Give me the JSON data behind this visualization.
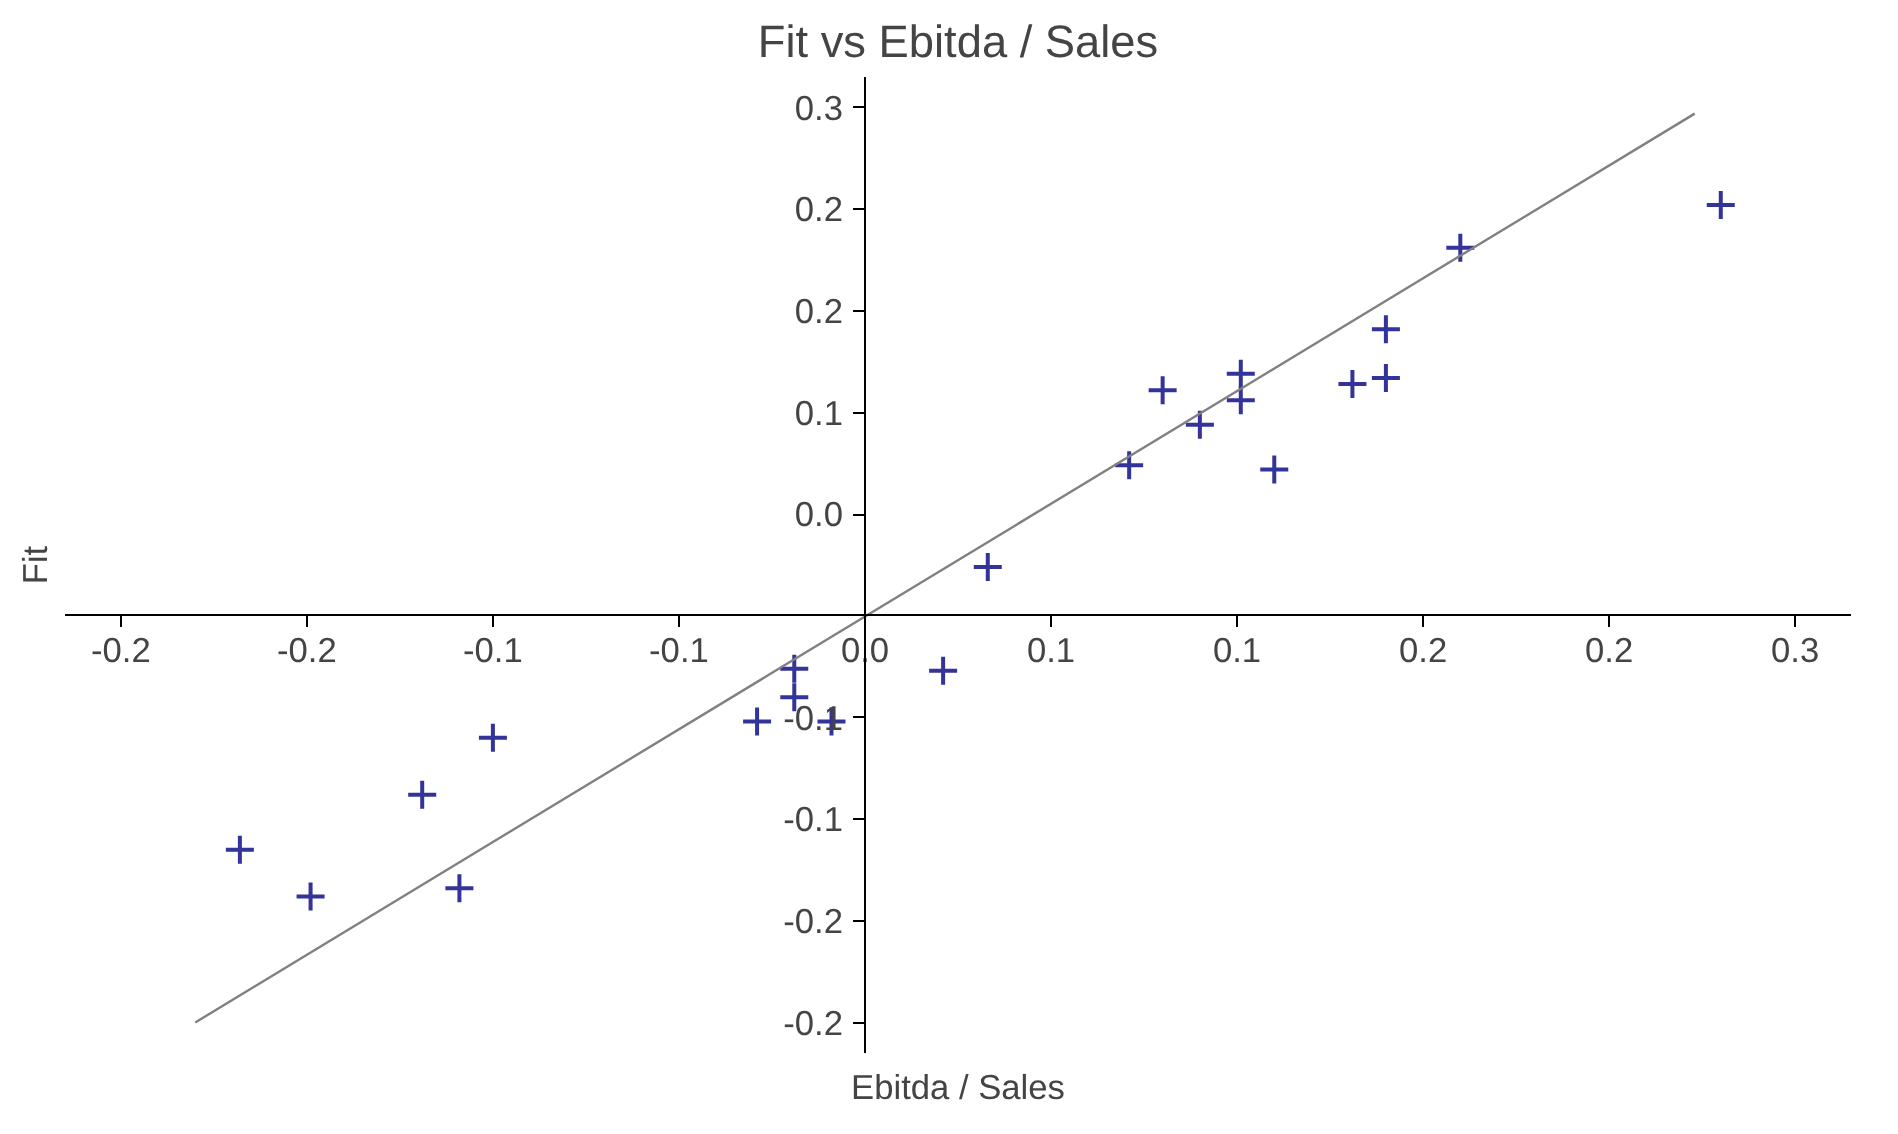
{
  "chart_data": {
    "type": "scatter",
    "title": "Fit vs Ebitda / Sales",
    "xlabel": "Ebitda / Sales",
    "ylabel": "Fit",
    "xlim": [
      -0.215,
      0.265
    ],
    "ylim": [
      -0.215,
      0.265
    ],
    "xticks": [
      {
        "value": -0.2,
        "label": "-0.2"
      },
      {
        "value": -0.15,
        "label": "-0.2"
      },
      {
        "value": -0.1,
        "label": "-0.1"
      },
      {
        "value": -0.05,
        "label": "-0.1"
      },
      {
        "value": 0,
        "label": "0.0"
      },
      {
        "value": 0.05,
        "label": "0.1"
      },
      {
        "value": 0.1,
        "label": "0.1"
      },
      {
        "value": 0.15,
        "label": "0.2"
      },
      {
        "value": 0.2,
        "label": "0.2"
      },
      {
        "value": 0.25,
        "label": "0.3"
      }
    ],
    "yticks": [
      {
        "value": -0.2,
        "label": "-0.2"
      },
      {
        "value": -0.15,
        "label": "-0.2"
      },
      {
        "value": -0.1,
        "label": "-0.1"
      },
      {
        "value": -0.05,
        "label": "-0.1"
      },
      {
        "value": 0,
        "label": null
      },
      {
        "value": 0.05,
        "label": "0.0"
      },
      {
        "value": 0.1,
        "label": "0.1"
      },
      {
        "value": 0.15,
        "label": "0.2"
      },
      {
        "value": 0.2,
        "label": "0.2"
      },
      {
        "value": 0.25,
        "label": "0.3"
      }
    ],
    "grid": false,
    "series": [
      {
        "marker": "cross",
        "color": "#333399",
        "x": [
          0.033,
          0.071,
          0.08,
          0.09,
          0.101,
          0.101,
          0.11,
          0.131,
          0.14,
          0.14,
          0.16,
          0.23,
          -0.168,
          -0.149,
          -0.119,
          -0.109,
          -0.1,
          -0.029,
          -0.019,
          -0.019,
          -0.009,
          0.021
        ],
        "values": [
          0.024,
          0.074,
          0.111,
          0.094,
          0.119,
          0.106,
          0.072,
          0.114,
          0.141,
          0.117,
          0.181,
          0.202,
          -0.115,
          -0.138,
          -0.088,
          -0.134,
          -0.06,
          -0.052,
          -0.026,
          -0.04,
          -0.052,
          -0.027
        ]
      },
      {
        "type": "line",
        "color": "#808080",
        "x": [
          -0.18,
          0.223
        ],
        "values": [
          -0.2,
          0.247
        ],
        "line_style": "solid"
      }
    ]
  }
}
